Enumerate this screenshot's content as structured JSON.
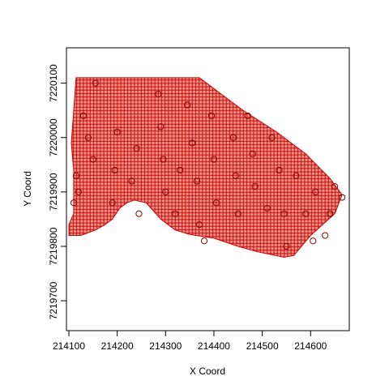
{
  "chart_data": {
    "type": "scatter",
    "title": "",
    "xlabel": "X Coord",
    "ylabel": "Y Coord",
    "xlim": [
      214095,
      214680
    ],
    "ylim": [
      7219645,
      7220165
    ],
    "x_ticks": [
      {
        "value": 214100,
        "label": "214100"
      },
      {
        "value": 214200,
        "label": "214200"
      },
      {
        "value": 214300,
        "label": "214300"
      },
      {
        "value": 214400,
        "label": "214400"
      },
      {
        "value": 214500,
        "label": "214500"
      },
      {
        "value": 214600,
        "label": "214600"
      }
    ],
    "y_ticks": [
      {
        "value": 7219700,
        "label": "7219700"
      },
      {
        "value": 7219800,
        "label": "7219800"
      },
      {
        "value": 7219900,
        "label": "7219900"
      },
      {
        "value": 7220000,
        "label": "7220000"
      },
      {
        "value": 7220100,
        "label": "7220100"
      }
    ],
    "grid": false,
    "legend": "none",
    "grid_series": {
      "marker": "plus",
      "color": "#cc0000",
      "spacing": 5,
      "boundary": [
        [
          214115,
          7220110
        ],
        [
          214370,
          7220110
        ],
        [
          214460,
          7220050
        ],
        [
          214530,
          7220010
        ],
        [
          214590,
          7219970
        ],
        [
          214640,
          7219925
        ],
        [
          214665,
          7219895
        ],
        [
          214650,
          7219860
        ],
        [
          214600,
          7219820
        ],
        [
          214565,
          7219783
        ],
        [
          214545,
          7219780
        ],
        [
          214490,
          7219790
        ],
        [
          214450,
          7219800
        ],
        [
          214400,
          7219815
        ],
        [
          214350,
          7219822
        ],
        [
          214320,
          7219830
        ],
        [
          214290,
          7219850
        ],
        [
          214260,
          7219880
        ],
        [
          214235,
          7219885
        ],
        [
          214220,
          7219880
        ],
        [
          214205,
          7219870
        ],
        [
          214190,
          7219850
        ],
        [
          214175,
          7219840
        ],
        [
          214155,
          7219830
        ],
        [
          214125,
          7219820
        ],
        [
          214100,
          7219820
        ],
        [
          214100,
          7219840
        ],
        [
          214110,
          7219860
        ],
        [
          214110,
          7219940
        ],
        [
          214105,
          7219990
        ]
      ]
    },
    "points_series": {
      "marker": "circle",
      "color": "#cc0000",
      "x": [
        214155,
        214130,
        214140,
        214150,
        214115,
        214120,
        214110,
        214200,
        214195,
        214190,
        214240,
        214230,
        214245,
        214285,
        214290,
        214295,
        214300,
        214320,
        214330,
        214345,
        214355,
        214365,
        214370,
        214380,
        214395,
        214400,
        214405,
        214440,
        214445,
        214450,
        214470,
        214480,
        214485,
        214510,
        214520,
        214535,
        214545,
        214550,
        214570,
        214590,
        214605,
        214610,
        214630,
        214640,
        214650,
        214665
      ],
      "y": [
        7220100,
        7220040,
        7220000,
        7219960,
        7219930,
        7219900,
        7219880,
        7220010,
        7219940,
        7219880,
        7219980,
        7219920,
        7219860,
        7220080,
        7220020,
        7219960,
        7219900,
        7219860,
        7219940,
        7220060,
        7219990,
        7219920,
        7219840,
        7219810,
        7220040,
        7219960,
        7219880,
        7220000,
        7219930,
        7219860,
        7220040,
        7219970,
        7219910,
        7219870,
        7220000,
        7219940,
        7219860,
        7219800,
        7219930,
        7219860,
        7219810,
        7219900,
        7219820,
        7219860,
        7219910,
        7219890
      ]
    }
  }
}
